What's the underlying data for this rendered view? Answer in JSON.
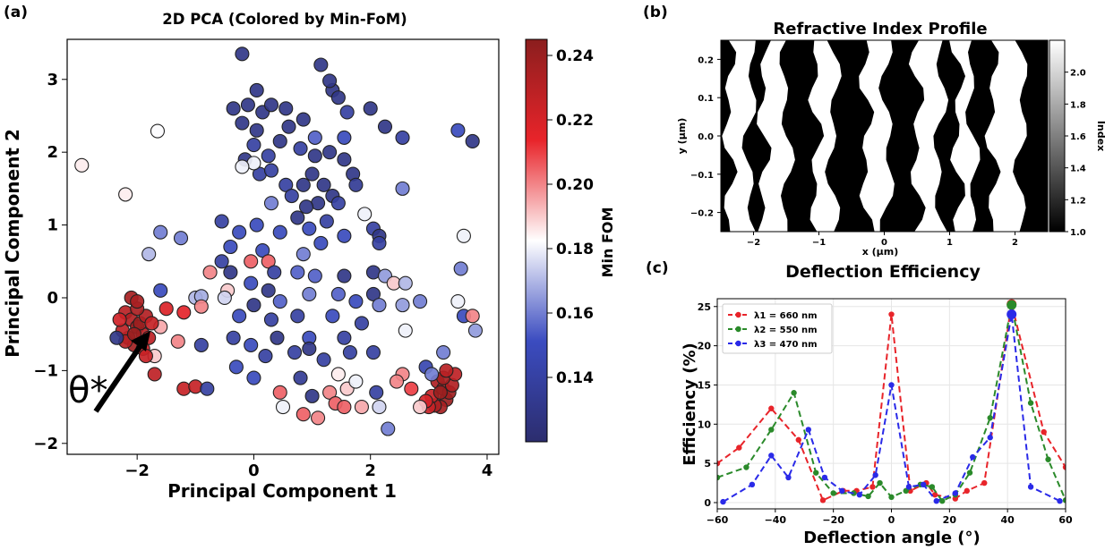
{
  "panels": {
    "a": "(a)",
    "b": "(b)",
    "c": "(c)"
  },
  "chart_data": [
    {
      "type": "scatter",
      "title": "2D PCA (Colored by Min-FoM)",
      "xlabel": "Principal Component 1",
      "ylabel": "Principal Component 2",
      "xlim": [
        -3.2,
        4.2
      ],
      "ylim": [
        -2.15,
        3.55
      ],
      "xticks": [
        -2,
        0,
        2,
        4
      ],
      "yticks": [
        -2,
        -1,
        0,
        1,
        2,
        3
      ],
      "colorbar": {
        "label": "Min FOM",
        "range": [
          0.12,
          0.245
        ],
        "ticks": [
          0.14,
          0.16,
          0.18,
          0.2,
          0.22,
          0.24
        ],
        "colormap": [
          "#2c2d6e",
          "#3b4cc0",
          "#ffffff",
          "#e8242a",
          "#8b1e1e"
        ]
      },
      "annotation": "θ*",
      "points": [
        [
          -2.95,
          1.82,
          0.185
        ],
        [
          -1.65,
          2.29,
          0.182
        ],
        [
          -2.2,
          1.42,
          0.185
        ],
        [
          -1.25,
          0.82,
          0.16
        ],
        [
          -1.6,
          0.9,
          0.16
        ],
        [
          -1.8,
          0.6,
          0.17
        ],
        [
          -1.6,
          0.1,
          0.15
        ],
        [
          -1.0,
          0.0,
          0.17
        ],
        [
          -0.9,
          0.02,
          0.168
        ],
        [
          -1.2,
          -0.2,
          0.215
        ],
        [
          -1.5,
          -0.15,
          0.218
        ],
        [
          -1.7,
          -0.8,
          0.19
        ],
        [
          -0.9,
          -0.12,
          0.2
        ],
        [
          -1.6,
          -0.4,
          0.195
        ],
        [
          -1.3,
          -0.6,
          0.2
        ],
        [
          -1.2,
          -1.25,
          0.225
        ],
        [
          -1.0,
          -1.22,
          0.225
        ],
        [
          -1.7,
          -1.05,
          0.228
        ],
        [
          -2.2,
          -0.2,
          0.23
        ],
        [
          -2.1,
          -0.3,
          0.232
        ],
        [
          -2.0,
          -0.4,
          0.235
        ],
        [
          -1.9,
          -0.5,
          0.23
        ],
        [
          -2.15,
          -0.55,
          0.235
        ],
        [
          -2.05,
          -0.65,
          0.238
        ],
        [
          -1.95,
          -0.35,
          0.24
        ],
        [
          -2.25,
          -0.45,
          0.228
        ],
        [
          -1.85,
          -0.25,
          0.232
        ],
        [
          -2.0,
          -0.15,
          0.235
        ],
        [
          -2.1,
          0.0,
          0.236
        ],
        [
          -2.2,
          -0.6,
          0.23
        ],
        [
          -1.8,
          -0.55,
          0.228
        ],
        [
          -1.75,
          -0.35,
          0.226
        ],
        [
          -2.3,
          -0.3,
          0.222
        ],
        [
          -2.05,
          -0.5,
          0.24
        ],
        [
          -1.9,
          -0.7,
          0.22
        ],
        [
          -2.35,
          -0.55,
          0.13
        ],
        [
          -1.85,
          -0.8,
          0.225
        ],
        [
          -2.0,
          -0.05,
          0.235
        ],
        [
          3.15,
          -1.15,
          0.233
        ],
        [
          3.25,
          -1.25,
          0.236
        ],
        [
          3.3,
          -1.4,
          0.24
        ],
        [
          3.2,
          -1.5,
          0.236
        ],
        [
          3.1,
          -1.48,
          0.234
        ],
        [
          3.35,
          -1.3,
          0.238
        ],
        [
          3.4,
          -1.2,
          0.232
        ],
        [
          3.05,
          -1.35,
          0.225
        ],
        [
          3.25,
          -1.1,
          0.236
        ],
        [
          3.0,
          -1.5,
          0.225
        ],
        [
          3.2,
          -1.3,
          0.24
        ],
        [
          3.45,
          -1.05,
          0.228
        ],
        [
          2.95,
          -1.42,
          0.22
        ],
        [
          3.3,
          -1.0,
          0.23
        ],
        [
          -0.2,
          3.35,
          0.13
        ],
        [
          0.05,
          2.85,
          0.13
        ],
        [
          -0.1,
          2.65,
          0.13
        ],
        [
          -0.35,
          2.6,
          0.13
        ],
        [
          0.15,
          2.55,
          0.13
        ],
        [
          -0.2,
          2.4,
          0.13
        ],
        [
          0.05,
          2.3,
          0.13
        ],
        [
          0.3,
          2.65,
          0.13
        ],
        [
          0.55,
          2.6,
          0.13
        ],
        [
          0.6,
          2.35,
          0.13
        ],
        [
          0.85,
          2.45,
          0.13
        ],
        [
          0.45,
          2.15,
          0.13
        ],
        [
          0.0,
          2.1,
          0.14
        ],
        [
          -0.15,
          1.9,
          0.13
        ],
        [
          0.25,
          1.95,
          0.14
        ],
        [
          0.8,
          2.05,
          0.14
        ],
        [
          1.05,
          2.2,
          0.155
        ],
        [
          1.05,
          1.95,
          0.13
        ],
        [
          1.3,
          2.0,
          0.13
        ],
        [
          1.35,
          2.85,
          0.13
        ],
        [
          1.45,
          2.75,
          0.13
        ],
        [
          1.3,
          2.98,
          0.13
        ],
        [
          1.15,
          3.2,
          0.13
        ],
        [
          1.6,
          2.55,
          0.14
        ],
        [
          2.0,
          2.6,
          0.13
        ],
        [
          2.25,
          2.35,
          0.13
        ],
        [
          2.55,
          2.2,
          0.14
        ],
        [
          3.75,
          2.15,
          0.13
        ],
        [
          3.5,
          2.3,
          0.15
        ],
        [
          1.55,
          2.2,
          0.15
        ],
        [
          0.1,
          1.7,
          0.14
        ],
        [
          0.3,
          1.75,
          0.14
        ],
        [
          0.55,
          1.55,
          0.14
        ],
        [
          0.65,
          1.4,
          0.14
        ],
        [
          0.85,
          1.55,
          0.13
        ],
        [
          1.0,
          1.7,
          0.13
        ],
        [
          1.2,
          1.55,
          0.13
        ],
        [
          1.35,
          1.4,
          0.13
        ],
        [
          1.1,
          1.3,
          0.13
        ],
        [
          0.9,
          1.25,
          0.13
        ],
        [
          0.75,
          1.1,
          0.13
        ],
        [
          1.25,
          1.05,
          0.14
        ],
        [
          1.45,
          1.3,
          0.14
        ],
        [
          1.55,
          1.9,
          0.13
        ],
        [
          1.7,
          1.7,
          0.13
        ],
        [
          1.75,
          1.55,
          0.135
        ],
        [
          0.0,
          1.85,
          0.18
        ],
        [
          -0.2,
          1.8,
          0.18
        ],
        [
          0.3,
          1.3,
          0.16
        ],
        [
          0.05,
          1.0,
          0.15
        ],
        [
          -0.55,
          1.05,
          0.14
        ],
        [
          -0.25,
          0.9,
          0.15
        ],
        [
          0.45,
          0.9,
          0.15
        ],
        [
          0.95,
          0.95,
          0.15
        ],
        [
          1.55,
          0.85,
          0.15
        ],
        [
          2.05,
          0.95,
          0.14
        ],
        [
          2.15,
          0.85,
          0.13
        ],
        [
          1.9,
          1.15,
          0.18
        ],
        [
          2.55,
          1.5,
          0.16
        ],
        [
          3.6,
          0.85,
          0.18
        ],
        [
          -0.4,
          0.7,
          0.15
        ],
        [
          0.15,
          0.65,
          0.15
        ],
        [
          0.85,
          0.6,
          0.16
        ],
        [
          1.15,
          0.75,
          0.15
        ],
        [
          2.15,
          0.75,
          0.14
        ],
        [
          -0.55,
          0.5,
          0.14
        ],
        [
          -0.05,
          0.5,
          0.205
        ],
        [
          0.25,
          0.5,
          0.205
        ],
        [
          -0.4,
          0.35,
          0.13
        ],
        [
          0.35,
          0.35,
          0.14
        ],
        [
          0.75,
          0.35,
          0.155
        ],
        [
          1.05,
          0.3,
          0.155
        ],
        [
          1.55,
          0.3,
          0.13
        ],
        [
          2.05,
          0.35,
          0.13
        ],
        [
          2.25,
          0.3,
          0.165
        ],
        [
          2.4,
          0.2,
          0.19
        ],
        [
          2.6,
          0.2,
          0.17
        ],
        [
          3.55,
          0.4,
          0.16
        ],
        [
          -0.75,
          0.35,
          0.2
        ],
        [
          -0.45,
          0.1,
          0.19
        ],
        [
          -0.05,
          0.2,
          0.15
        ],
        [
          0.25,
          0.1,
          0.13
        ],
        [
          -0.5,
          -0.0,
          0.175
        ],
        [
          0.0,
          -0.1,
          0.13
        ],
        [
          0.45,
          -0.05,
          0.155
        ],
        [
          0.95,
          0.05,
          0.16
        ],
        [
          1.45,
          0.05,
          0.155
        ],
        [
          1.75,
          -0.05,
          0.15
        ],
        [
          2.05,
          0.05,
          0.13
        ],
        [
          2.55,
          -0.1,
          0.165
        ],
        [
          2.15,
          -0.1,
          0.16
        ],
        [
          2.85,
          -0.05,
          0.16
        ],
        [
          3.5,
          -0.05,
          0.18
        ],
        [
          3.6,
          -0.25,
          0.15
        ],
        [
          3.75,
          -0.25,
          0.2
        ],
        [
          -0.25,
          -0.25,
          0.15
        ],
        [
          0.3,
          -0.3,
          0.14
        ],
        [
          0.75,
          -0.25,
          0.14
        ],
        [
          1.35,
          -0.25,
          0.15
        ],
        [
          1.85,
          -0.35,
          0.14
        ],
        [
          2.6,
          -0.45,
          0.18
        ],
        [
          3.8,
          -0.45,
          0.165
        ],
        [
          -0.35,
          -0.55,
          0.14
        ],
        [
          0.4,
          -0.55,
          0.13
        ],
        [
          0.95,
          -0.55,
          0.15
        ],
        [
          1.55,
          -0.55,
          0.14
        ],
        [
          -0.05,
          -0.65,
          0.15
        ],
        [
          -0.9,
          -0.65,
          0.14
        ],
        [
          0.7,
          -0.75,
          0.14
        ],
        [
          0.95,
          -0.7,
          0.13
        ],
        [
          1.65,
          -0.75,
          0.14
        ],
        [
          -0.3,
          -0.95,
          0.15
        ],
        [
          0.2,
          -0.8,
          0.14
        ],
        [
          1.2,
          -0.85,
          0.14
        ],
        [
          2.05,
          -0.75,
          0.14
        ],
        [
          0.0,
          -1.1,
          0.15
        ],
        [
          0.8,
          -1.1,
          0.135
        ],
        [
          1.45,
          -1.05,
          0.185
        ],
        [
          1.6,
          -1.25,
          0.19
        ],
        [
          2.55,
          -1.05,
          0.2
        ],
        [
          2.7,
          -1.25,
          0.21
        ],
        [
          2.1,
          -1.3,
          0.14
        ],
        [
          1.75,
          -1.15,
          0.18
        ],
        [
          1.3,
          -1.3,
          0.2
        ],
        [
          1.0,
          -1.35,
          0.13
        ],
        [
          1.4,
          -1.45,
          0.205
        ],
        [
          1.55,
          -1.5,
          0.205
        ],
        [
          1.85,
          -1.5,
          0.195
        ],
        [
          2.15,
          -1.5,
          0.175
        ],
        [
          2.3,
          -1.8,
          0.16
        ],
        [
          1.1,
          -1.65,
          0.2
        ],
        [
          0.85,
          -1.6,
          0.205
        ],
        [
          0.5,
          -1.5,
          0.18
        ],
        [
          0.45,
          -1.3,
          0.205
        ],
        [
          -0.8,
          -1.25,
          0.14
        ],
        [
          2.95,
          -0.95,
          0.145
        ],
        [
          3.05,
          -1.05,
          0.16
        ],
        [
          2.85,
          -1.5,
          0.19
        ],
        [
          3.25,
          -0.75,
          0.16
        ],
        [
          2.45,
          -1.15,
          0.2
        ]
      ]
    },
    {
      "type": "heatmap",
      "title": "Refractive Index Profile",
      "xlabel": "x (µm)",
      "ylabel": "y (µm)",
      "xlim": [
        -2.5,
        2.5
      ],
      "ylim": [
        -0.25,
        0.25
      ],
      "xticks": [
        -2,
        -1,
        0,
        1,
        2
      ],
      "yticks": [
        -0.2,
        -0.1,
        0.0,
        0.1,
        0.2
      ],
      "colorbar": {
        "label": "Index",
        "range": [
          1.0,
          2.2
        ],
        "ticks": [
          "1.0",
          "1.2",
          "1.4",
          "1.6",
          "1.8",
          "2.0"
        ]
      },
      "stripes": [
        {
          "x_left": -2.38,
          "x_right": -2.05
        },
        {
          "x_left": -1.85,
          "x_right": -1.5
        },
        {
          "x_left": -1.05,
          "x_right": -0.78
        },
        {
          "x_left": -0.28,
          "x_right": 0.05
        },
        {
          "x_left": 0.5,
          "x_right": 0.85
        },
        {
          "x_left": 1.12,
          "x_right": 1.35
        },
        {
          "x_left": 1.65,
          "x_right": 2.1
        }
      ]
    },
    {
      "type": "line",
      "title": "Deflection Efficiency",
      "xlabel": "Deflection angle (°)",
      "ylabel": "Efficiency (%)",
      "xlim": [
        -60,
        60
      ],
      "ylim": [
        -0.8,
        26
      ],
      "xticks": [
        -60,
        -40,
        -20,
        0,
        20,
        40,
        60
      ],
      "yticks": [
        0,
        5,
        10,
        15,
        20,
        25
      ],
      "grid": true,
      "legend": "top-left",
      "series": [
        {
          "name": "λ1 = 660 nm",
          "color": "#e8242a",
          "points": [
            [
              -60,
              5
            ],
            [
              -52.5,
              7
            ],
            [
              -41.4,
              12
            ],
            [
              -32,
              8
            ],
            [
              -23.6,
              0.3
            ],
            [
              -16.6,
              1.5
            ],
            [
              -12,
              1.5
            ],
            [
              -6.5,
              2
            ],
            [
              0,
              24
            ],
            [
              6.5,
              1.5
            ],
            [
              12,
              2.5
            ],
            [
              15,
              1
            ],
            [
              22,
              0.5
            ],
            [
              26,
              1.5
            ],
            [
              32,
              2.5
            ],
            [
              41.4,
              25.3
            ],
            [
              52.5,
              9
            ],
            [
              60,
              4.5
            ]
          ]
        },
        {
          "name": "λ2 = 550 nm",
          "color": "#2a8a2a",
          "points": [
            [
              -60,
              3.2
            ],
            [
              -50,
              4.5
            ],
            [
              -41.4,
              9.3
            ],
            [
              -33.6,
              14
            ],
            [
              -26,
              3.8
            ],
            [
              -20,
              1.2
            ],
            [
              -13,
              1.2
            ],
            [
              -8,
              0.8
            ],
            [
              -4,
              2.5
            ],
            [
              0,
              0.7
            ],
            [
              5,
              1.5
            ],
            [
              10,
              2.3
            ],
            [
              14,
              2
            ],
            [
              17.5,
              0.2
            ],
            [
              22,
              1
            ],
            [
              27,
              3.8
            ],
            [
              34,
              10.8
            ],
            [
              41.4,
              25.2
            ],
            [
              48,
              12.7
            ],
            [
              54,
              5.5
            ],
            [
              60,
              0.3
            ]
          ]
        },
        {
          "name": "λ3 = 470 nm",
          "color": "#2a2ae8",
          "points": [
            [
              -58,
              0.1
            ],
            [
              -48,
              2.3
            ],
            [
              -41.4,
              6
            ],
            [
              -35.5,
              3.2
            ],
            [
              -28.6,
              9.3
            ],
            [
              -23,
              3.2
            ],
            [
              -17,
              1.5
            ],
            [
              -11,
              1
            ],
            [
              -5.5,
              3.5
            ],
            [
              0,
              15
            ],
            [
              6,
              2
            ],
            [
              11,
              2.3
            ],
            [
              15.5,
              0.2
            ],
            [
              22,
              1.2
            ],
            [
              28,
              5.8
            ],
            [
              34,
              8.3
            ],
            [
              41.4,
              24
            ],
            [
              48,
              2
            ],
            [
              58,
              0.2
            ]
          ]
        }
      ]
    }
  ]
}
